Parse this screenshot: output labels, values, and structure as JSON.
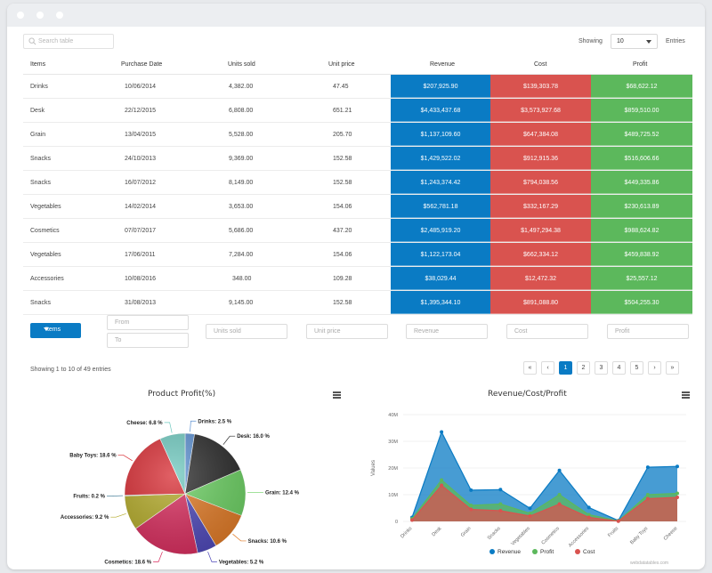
{
  "toolbar": {
    "search_placeholder": "Search table",
    "showing_label": "Showing",
    "page_size": "10",
    "entries_label": "Entries"
  },
  "table": {
    "headers": [
      "Items",
      "Purchase Date",
      "Units sold",
      "Unit price",
      "Revenue",
      "Cost",
      "Profit"
    ],
    "rows": [
      [
        "Drinks",
        "10/06/2014",
        "4,382.00",
        "47.45",
        "$207,925.90",
        "$139,303.78",
        "$68,622.12"
      ],
      [
        "Desk",
        "22/12/2015",
        "6,808.00",
        "651.21",
        "$4,433,437.68",
        "$3,573,927.68",
        "$859,510.00"
      ],
      [
        "Grain",
        "13/04/2015",
        "5,528.00",
        "205.70",
        "$1,137,109.60",
        "$647,384.08",
        "$489,725.52"
      ],
      [
        "Snacks",
        "24/10/2013",
        "9,369.00",
        "152.58",
        "$1,429,522.02",
        "$912,915.36",
        "$516,606.66"
      ],
      [
        "Snacks",
        "16/07/2012",
        "8,149.00",
        "152.58",
        "$1,243,374.42",
        "$794,038.56",
        "$449,335.86"
      ],
      [
        "Vegetables",
        "14/02/2014",
        "3,653.00",
        "154.06",
        "$562,781.18",
        "$332,167.29",
        "$230,613.89"
      ],
      [
        "Cosmetics",
        "07/07/2017",
        "5,686.00",
        "437.20",
        "$2,485,919.20",
        "$1,497,294.38",
        "$988,624.82"
      ],
      [
        "Vegetables",
        "17/06/2011",
        "7,284.00",
        "154.06",
        "$1,122,173.04",
        "$662,334.12",
        "$459,838.92"
      ],
      [
        "Accessories",
        "10/08/2016",
        "348.00",
        "109.28",
        "$38,029.44",
        "$12,472.32",
        "$25,557.12"
      ],
      [
        "Snacks",
        "31/08/2013",
        "9,145.00",
        "152.58",
        "$1,395,344.10",
        "$891,088.80",
        "$504,255.30"
      ]
    ]
  },
  "filters": {
    "items_button": "Items",
    "from_placeholder": "From",
    "to_placeholder": "To",
    "units_placeholder": "Units sold",
    "price_placeholder": "Unit price",
    "revenue_placeholder": "Revenue",
    "cost_placeholder": "Cost",
    "profit_placeholder": "Profit"
  },
  "footer": {
    "showing_text": "Showing 1 to 10 of 49 entries",
    "pages": [
      "1",
      "2",
      "3",
      "4",
      "5"
    ],
    "active_page": "1",
    "watermark": "webdatatables.com"
  },
  "colors": {
    "revenue": "#0a7bc4",
    "cost": "#d9534f",
    "profit": "#5cb85c"
  },
  "chart_data": [
    {
      "type": "pie",
      "title": "Product Profit(%)",
      "categories": [
        "Drinks",
        "Desk",
        "Grain",
        "Snacks",
        "Vegetables",
        "Cosmetics",
        "Accessories",
        "Fruits",
        "Baby Toys",
        "Cheese"
      ],
      "values": [
        2.5,
        16.0,
        12.4,
        10.6,
        5.2,
        18.6,
        9.2,
        0.2,
        18.6,
        6.8
      ],
      "labels": [
        "Drinks: 2.5 %",
        "Desk: 16.0 %",
        "Grain: 12.4 %",
        "Snacks: 10.6 %",
        "Vegetables: 5.2 %",
        "Cosmetics: 18.6 %",
        "Accessories: 9.2 %",
        "Fruits: 0.2 %",
        "Baby Toys: 18.6 %",
        "Cheese: 6.8 %"
      ],
      "colors": [
        "#5b8fd0",
        "#2a2a2a",
        "#6cd063",
        "#e07a26",
        "#4d47b8",
        "#d82c5d",
        "#b3aa28",
        "#2f6e8c",
        "#d82c33",
        "#6fc9bf"
      ]
    },
    {
      "type": "area",
      "title": "Revenue/Cost/Profit",
      "ylabel": "Values",
      "categories": [
        "Drinks",
        "Desk",
        "Grain",
        "Snacks",
        "Vegetables",
        "Cosmetics",
        "Accessories",
        "Fruits",
        "Baby Toys",
        "Cheese"
      ],
      "yticks": [
        "0",
        "10M",
        "20M",
        "30M",
        "40M"
      ],
      "ylim": [
        0,
        40
      ],
      "series": [
        {
          "name": "Revenue",
          "values": [
            1.5,
            33.5,
            11.7,
            11.9,
            4.9,
            19.1,
            5.2,
            0.3,
            20.3,
            20.6
          ]
        },
        {
          "name": "Profit",
          "values": [
            1.0,
            15.5,
            6.0,
            6.5,
            3.0,
            10.0,
            2.5,
            0.2,
            10.0,
            10.5
          ]
        },
        {
          "name": "Cost",
          "values": [
            0.5,
            13.5,
            4.5,
            4.0,
            2.0,
            6.5,
            1.5,
            0.1,
            8.5,
            9.0
          ]
        }
      ],
      "legend": [
        "Revenue",
        "Profit",
        "Cost"
      ],
      "legend_position": "bottom"
    }
  ]
}
